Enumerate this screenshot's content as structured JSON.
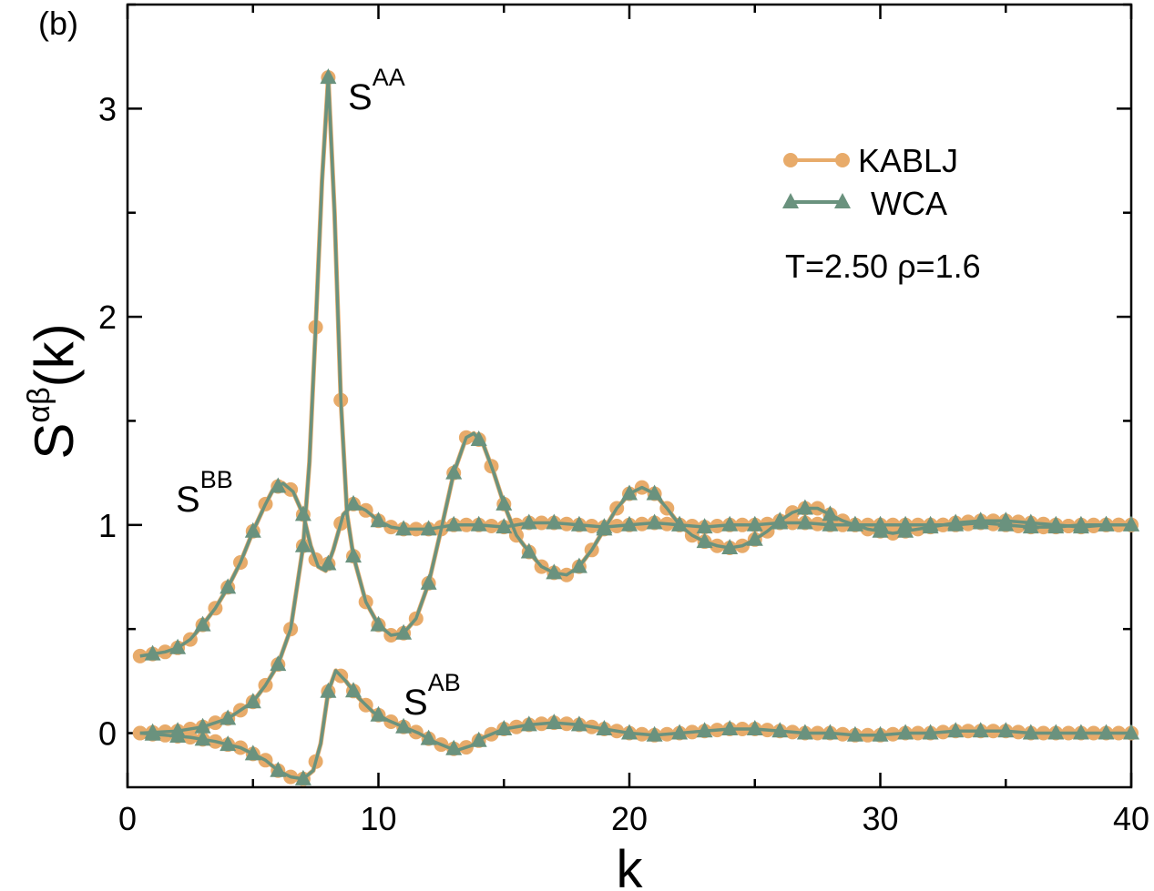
{
  "chart_data": {
    "type": "line",
    "panel_label": "(b)",
    "xlabel": "k",
    "ylabel_main": "S",
    "ylabel_sup": "αβ",
    "ylabel_tail": "(k)",
    "xlim": [
      0,
      40
    ],
    "ylim": [
      -0.26,
      3.5
    ],
    "xticks": [
      0,
      10,
      20,
      30,
      40
    ],
    "xtick_labels": [
      "0",
      "10",
      "20",
      "30",
      "40"
    ],
    "yticks": [
      0,
      1,
      2,
      3
    ],
    "ytick_labels": [
      "0",
      "1",
      "2",
      "3"
    ],
    "annotations": {
      "saa": {
        "base": "S",
        "sup": "AA"
      },
      "sbb": {
        "base": "S",
        "sup": "BB"
      },
      "sab": {
        "base": "S",
        "sup": "AB"
      },
      "state": "T=2.50   ρ=1.6"
    },
    "legend": [
      {
        "name": "KABLJ",
        "color": "#e8ab6a",
        "marker": "circle"
      },
      {
        "name": "WCA",
        "color": "#6a927e",
        "marker": "triangle"
      }
    ],
    "curves": [
      {
        "name": "S_AA",
        "points": [
          [
            0.5,
            0
          ],
          [
            2,
            0.01
          ],
          [
            3,
            0.03
          ],
          [
            4,
            0.07
          ],
          [
            5,
            0.15
          ],
          [
            5.5,
            0.23
          ],
          [
            6,
            0.33
          ],
          [
            6.5,
            0.5
          ],
          [
            7,
            0.9
          ],
          [
            7.25,
            1.3
          ],
          [
            7.5,
            1.95
          ],
          [
            7.75,
            2.65
          ],
          [
            8,
            3.15
          ],
          [
            8.25,
            2.5
          ],
          [
            8.5,
            1.6
          ],
          [
            8.75,
            1.05
          ],
          [
            9,
            0.85
          ],
          [
            9.5,
            0.63
          ],
          [
            10,
            0.52
          ],
          [
            10.5,
            0.47
          ],
          [
            11,
            0.48
          ],
          [
            11.5,
            0.55
          ],
          [
            12,
            0.72
          ],
          [
            12.5,
            0.98
          ],
          [
            13,
            1.25
          ],
          [
            13.5,
            1.42
          ],
          [
            13.8,
            1.44
          ],
          [
            14.2,
            1.38
          ],
          [
            14.6,
            1.25
          ],
          [
            15,
            1.1
          ],
          [
            15.5,
            0.95
          ],
          [
            16,
            0.87
          ],
          [
            16.5,
            0.8
          ],
          [
            17,
            0.77
          ],
          [
            17.5,
            0.76
          ],
          [
            18,
            0.8
          ],
          [
            18.5,
            0.88
          ],
          [
            19,
            0.98
          ],
          [
            19.5,
            1.08
          ],
          [
            20,
            1.15
          ],
          [
            20.5,
            1.18
          ],
          [
            21,
            1.15
          ],
          [
            21.5,
            1.08
          ],
          [
            22,
            1.0
          ],
          [
            22.5,
            0.95
          ],
          [
            23,
            0.92
          ],
          [
            23.5,
            0.9
          ],
          [
            24,
            0.89
          ],
          [
            24.5,
            0.9
          ],
          [
            25,
            0.93
          ],
          [
            25.5,
            0.97
          ],
          [
            26,
            1.02
          ],
          [
            26.5,
            1.06
          ],
          [
            27,
            1.08
          ],
          [
            27.5,
            1.08
          ],
          [
            28,
            1.05
          ],
          [
            28.5,
            1.02
          ],
          [
            29,
            1.0
          ],
          [
            29.5,
            0.98
          ],
          [
            30,
            0.97
          ],
          [
            30.5,
            0.96
          ],
          [
            31,
            0.97
          ],
          [
            31.5,
            0.98
          ],
          [
            32,
            0.99
          ],
          [
            33,
            1.01
          ],
          [
            34,
            1.02
          ],
          [
            35,
            1.02
          ],
          [
            36,
            1.01
          ],
          [
            37,
            1.0
          ],
          [
            38,
            0.99
          ],
          [
            39,
            1.0
          ],
          [
            40,
            1.0
          ]
        ]
      },
      {
        "name": "S_BB",
        "points": [
          [
            0.5,
            0.37
          ],
          [
            1,
            0.38
          ],
          [
            1.5,
            0.39
          ],
          [
            2,
            0.41
          ],
          [
            2.5,
            0.45
          ],
          [
            3,
            0.52
          ],
          [
            3.5,
            0.6
          ],
          [
            4,
            0.7
          ],
          [
            4.5,
            0.82
          ],
          [
            5,
            0.97
          ],
          [
            5.5,
            1.1
          ],
          [
            5.8,
            1.17
          ],
          [
            6.2,
            1.2
          ],
          [
            6.6,
            1.16
          ],
          [
            7,
            1.05
          ],
          [
            7.3,
            0.9
          ],
          [
            7.6,
            0.8
          ],
          [
            7.9,
            0.78
          ],
          [
            8.2,
            0.88
          ],
          [
            8.6,
            1.05
          ],
          [
            9,
            1.1
          ],
          [
            9.5,
            1.07
          ],
          [
            10,
            1.02
          ],
          [
            10.5,
            0.99
          ],
          [
            11,
            0.98
          ],
          [
            12,
            0.98
          ],
          [
            13,
            1.0
          ],
          [
            14,
            1.0
          ],
          [
            15,
            0.99
          ],
          [
            16,
            1.01
          ],
          [
            17,
            1.01
          ],
          [
            18,
            1.0
          ],
          [
            19,
            0.99
          ],
          [
            20,
            1.0
          ],
          [
            21,
            1.01
          ],
          [
            22,
            1.0
          ],
          [
            23,
            0.99
          ],
          [
            24,
            1.0
          ],
          [
            25,
            1.0
          ],
          [
            26,
            1.01
          ],
          [
            27,
            1.01
          ],
          [
            28,
            1.0
          ],
          [
            29,
            1.0
          ],
          [
            30,
            1.0
          ],
          [
            31,
            1.0
          ],
          [
            32,
            1.0
          ],
          [
            33,
            1.0
          ],
          [
            34,
            1.01
          ],
          [
            35,
            1.0
          ],
          [
            36,
            0.99
          ],
          [
            37,
            0.99
          ],
          [
            38,
            1.0
          ],
          [
            39,
            1.0
          ],
          [
            40,
            1.0
          ]
        ]
      },
      {
        "name": "S_AB",
        "points": [
          [
            0.5,
            0
          ],
          [
            1.5,
            -0.01
          ],
          [
            2.5,
            -0.02
          ],
          [
            3.5,
            -0.04
          ],
          [
            4.5,
            -0.07
          ],
          [
            5.5,
            -0.13
          ],
          [
            6,
            -0.18
          ],
          [
            6.5,
            -0.21
          ],
          [
            7,
            -0.22
          ],
          [
            7.4,
            -0.18
          ],
          [
            7.7,
            -0.05
          ],
          [
            8,
            0.2
          ],
          [
            8.3,
            0.3
          ],
          [
            8.7,
            0.25
          ],
          [
            9.2,
            0.17
          ],
          [
            9.8,
            0.1
          ],
          [
            10.4,
            0.06
          ],
          [
            11,
            0.03
          ],
          [
            11.6,
            0.0
          ],
          [
            12.2,
            -0.04
          ],
          [
            12.8,
            -0.07
          ],
          [
            13.2,
            -0.08
          ],
          [
            13.7,
            -0.06
          ],
          [
            14.2,
            -0.02
          ],
          [
            15,
            0.02
          ],
          [
            16,
            0.04
          ],
          [
            17,
            0.05
          ],
          [
            18,
            0.04
          ],
          [
            19,
            0.02
          ],
          [
            20,
            0.0
          ],
          [
            21,
            -0.01
          ],
          [
            22,
            0.0
          ],
          [
            23,
            0.01
          ],
          [
            24,
            0.02
          ],
          [
            25,
            0.02
          ],
          [
            26,
            0.01
          ],
          [
            27,
            0.0
          ],
          [
            28,
            0.0
          ],
          [
            29,
            -0.01
          ],
          [
            30,
            -0.01
          ],
          [
            31,
            0.0
          ],
          [
            32,
            0.0
          ],
          [
            33,
            0.01
          ],
          [
            34,
            0.01
          ],
          [
            35,
            0.01
          ],
          [
            36,
            0.0
          ],
          [
            37,
            0.0
          ],
          [
            38,
            0.0
          ],
          [
            39,
            0.0
          ],
          [
            40,
            0.0
          ]
        ]
      }
    ]
  }
}
